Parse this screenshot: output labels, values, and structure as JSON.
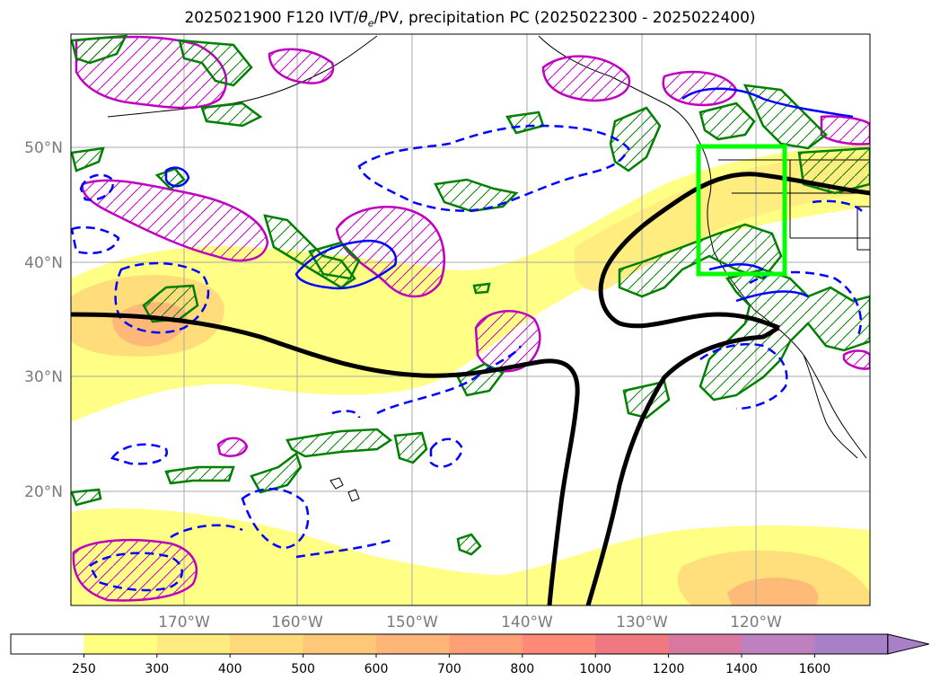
{
  "title": {
    "pre": "2025021900 F120 IVT/",
    "theta": "θ",
    "sub": "e",
    "post": "/PV, precipitation PC (2025022300 - 2025022400)"
  },
  "axes": {
    "lat_labels": [
      "50°N",
      "40°N",
      "30°N",
      "20°N"
    ],
    "lon_labels": [
      "170°W",
      "160°W",
      "150°W",
      "140°W",
      "130°W",
      "120°W"
    ]
  },
  "colorbar": {
    "ticks": [
      "250",
      "300",
      "400",
      "500",
      "600",
      "700",
      "800",
      "1000",
      "1200",
      "1400",
      "1600"
    ],
    "colors": [
      "#ffffff",
      "#ffff80",
      "#ffeb80",
      "#ffd97a",
      "#ffc878",
      "#ffb478",
      "#ff9f78",
      "#ff8a78",
      "#f07880",
      "#d878a0",
      "#bf80c0",
      "#a780c8"
    ],
    "extend": "max"
  },
  "legend_colors": {
    "pv_contour": "#000000",
    "theta_e_solid": "#0000ff",
    "theta_e_dashed": "#0000ff",
    "precip_green": "#008000",
    "hatch_magenta": "#c000c0",
    "target_box": "#00ff00"
  }
}
